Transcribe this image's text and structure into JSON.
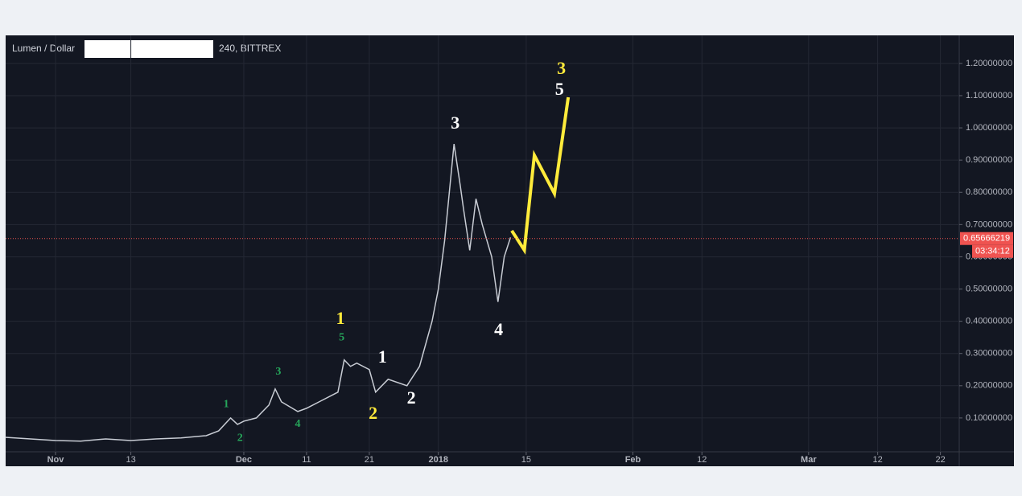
{
  "chart_data": {
    "type": "line",
    "title": "Lumen / Dollar",
    "interval": "240, BITTREX",
    "x": [
      -8,
      -4,
      0,
      4,
      8,
      12,
      16,
      20,
      24,
      26,
      27.9,
      29,
      30,
      32,
      34,
      35,
      36,
      38.6,
      40,
      42,
      45,
      46,
      47,
      48,
      50,
      51,
      53,
      56,
      58,
      60,
      61,
      62,
      63.5,
      64.5,
      65,
      66,
      67,
      68,
      69.5,
      70.5,
      71.5,
      72.5
    ],
    "values": [
      0.04,
      0.035,
      0.03,
      0.028,
      0.035,
      0.03,
      0.035,
      0.038,
      0.045,
      0.06,
      0.1,
      0.08,
      0.09,
      0.1,
      0.14,
      0.19,
      0.15,
      0.12,
      0.13,
      0.15,
      0.18,
      0.28,
      0.26,
      0.27,
      0.25,
      0.18,
      0.22,
      0.2,
      0.26,
      0.4,
      0.5,
      0.65,
      0.95,
      0.82,
      0.75,
      0.62,
      0.78,
      0.7,
      0.6,
      0.46,
      0.6,
      0.66
    ],
    "color": "#c8ccd4",
    "projection": {
      "x": [
        72.7,
        74.7,
        76.3,
        79.5,
        81.7
      ],
      "values": [
        0.681,
        0.621,
        0.915,
        0.796,
        1.095
      ],
      "color": "#ffeb3b"
    },
    "last_price": 0.65666219,
    "countdown": "03:34:12",
    "last_price_color": "#ef5350",
    "xlim": [
      -7.95,
      144
    ],
    "ylim": [
      -0.005,
      1.287
    ],
    "xticks": [
      {
        "value": 0,
        "label": "Nov"
      },
      {
        "value": 12,
        "label": "13"
      },
      {
        "value": 30,
        "label": "Dec"
      },
      {
        "value": 40,
        "label": "11"
      },
      {
        "value": 50,
        "label": "21"
      },
      {
        "value": 61,
        "label": "2018"
      },
      {
        "value": 75,
        "label": "15"
      },
      {
        "value": 92,
        "label": "Feb"
      },
      {
        "value": 103,
        "label": "12"
      },
      {
        "value": 120,
        "label": "Mar"
      },
      {
        "value": 131,
        "label": "12"
      },
      {
        "value": 141,
        "label": "22"
      }
    ],
    "yticks": [
      {
        "value": 0.1,
        "label": "0.10000000"
      },
      {
        "value": 0.2,
        "label": "0.20000000"
      },
      {
        "value": 0.3,
        "label": "0.30000000"
      },
      {
        "value": 0.4,
        "label": "0.40000000"
      },
      {
        "value": 0.5,
        "label": "0.50000000"
      },
      {
        "value": 0.6,
        "label": "0.60000000"
      },
      {
        "value": 0.7,
        "label": "0.70000000"
      },
      {
        "value": 0.8,
        "label": "0.80000000"
      },
      {
        "value": 0.9,
        "label": "0.90000000"
      },
      {
        "value": 1.0,
        "label": "1.00000000"
      },
      {
        "value": 1.1,
        "label": "1.10000000"
      },
      {
        "value": 1.2,
        "label": "1.20000000"
      }
    ],
    "grid": true,
    "annotations": [
      {
        "text": "3",
        "x": 80.6,
        "y": 1.18,
        "color": "#ffeb3b"
      },
      {
        "text": "5",
        "x": 80.3,
        "y": 1.115,
        "color": "#ffffff"
      },
      {
        "text": "3",
        "x": 63.7,
        "y": 1.01,
        "color": "#ffffff"
      },
      {
        "text": "4",
        "x": 70.6,
        "y": 0.369,
        "color": "#ffffff"
      },
      {
        "text": "1",
        "x": 45.4,
        "y": 0.404,
        "color": "#ffeb3b"
      },
      {
        "text": "5",
        "x": 45.6,
        "y": 0.349,
        "color": "#26a65b"
      },
      {
        "text": "1",
        "x": 52.1,
        "y": 0.284,
        "color": "#ffffff"
      },
      {
        "text": "2",
        "x": 56.7,
        "y": 0.157,
        "color": "#ffffff"
      },
      {
        "text": "2",
        "x": 50.6,
        "y": 0.11,
        "color": "#ffeb3b"
      },
      {
        "text": "3",
        "x": 35.5,
        "y": 0.242,
        "color": "#26a65b"
      },
      {
        "text": "1",
        "x": 27.2,
        "y": 0.142,
        "color": "#26a65b"
      },
      {
        "text": "2",
        "x": 29.4,
        "y": 0.037,
        "color": "#26a65b"
      },
      {
        "text": "4",
        "x": 38.6,
        "y": 0.08,
        "color": "#26a65b"
      }
    ]
  }
}
